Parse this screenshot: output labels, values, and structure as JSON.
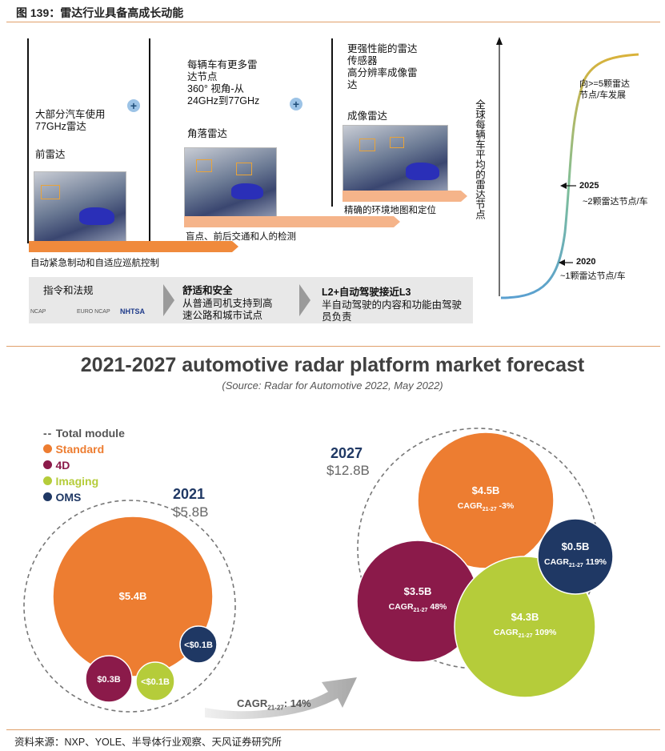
{
  "figure": {
    "title": "图 139：雷达行业具备高成长动能",
    "source": "资料来源：NXP、YOLE、半导体行业观察、天风证券研究所"
  },
  "roadmap": {
    "stage1": {
      "text": "大部分汽车使用\n77GHz雷达",
      "label": "前雷达",
      "bar": "自动紧急制动和自适应巡航控制"
    },
    "stage2": {
      "text": "每辆车有更多雷\n达节点\n360° 视角-从\n24GHz到77GHz",
      "label": "角落雷达",
      "bar": "盲点、前后交通和人的检测"
    },
    "stage3": {
      "text": "更强性能的雷达\n传感器\n高分辨率成像雷\n达",
      "label": "成像雷达",
      "bar": "精确的环境地图和定位"
    },
    "plus_symbol": "+",
    "band": {
      "col1_title": "指令和法规",
      "logos": [
        "NCAP",
        "EURO NCAP",
        "NHTSA"
      ],
      "col2_title": "舒适和安全",
      "col2_text": "从普通司机支持到高\n速公路和城市试点",
      "col3_title": "L2+自动驾驶接近L3",
      "col3_text": "半自动驾驶的内容和功能由驾驶\n员负责"
    },
    "curve": {
      "ylabel": "全球每辆车平均的雷达节点",
      "points": [
        {
          "year": "2020",
          "label": "~1颗雷达节点/车"
        },
        {
          "year": "2025",
          "label": "~2颗雷达节点/车"
        },
        {
          "year": "",
          "label": "向>=5颗雷达\n节点/车发展"
        }
      ]
    }
  },
  "forecast": {
    "title": "2021-2027 automotive radar platform market forecast",
    "subtitle": "(Source: Radar for Automotive 2022, May 2022)",
    "legend": [
      {
        "name": "Total module",
        "marker": "--",
        "color": "#555555"
      },
      {
        "name": "Standard",
        "color": "#ED7D31"
      },
      {
        "name": "4D",
        "color": "#8B1A4A"
      },
      {
        "name": "Imaging",
        "color": "#B5CC3A"
      },
      {
        "name": "OMS",
        "color": "#1F3864"
      }
    ],
    "arrow_label": "CAGR",
    "arrow_sub": "21-27",
    "arrow_value": ": 14%"
  },
  "chart_data": [
    {
      "type": "bubble",
      "year": "2021",
      "total": "$5.8B",
      "bubbles": [
        {
          "series": "Standard",
          "value": 5.4,
          "label": "$5.4B"
        },
        {
          "series": "4D",
          "value": 0.3,
          "label": "$0.3B"
        },
        {
          "series": "Imaging",
          "value": 0.1,
          "label": "<$0.1B"
        },
        {
          "series": "OMS",
          "value": 0.1,
          "label": "<$0.1B"
        }
      ]
    },
    {
      "type": "bubble",
      "year": "2027",
      "total": "$12.8B",
      "bubbles": [
        {
          "series": "Standard",
          "value": 4.5,
          "label": "$4.5B",
          "cagr": "-3%"
        },
        {
          "series": "4D",
          "value": 3.5,
          "label": "$3.5B",
          "cagr": "48%"
        },
        {
          "series": "Imaging",
          "value": 4.3,
          "label": "$4.3B",
          "cagr": "109%"
        },
        {
          "series": "OMS",
          "value": 0.5,
          "label": "$0.5B",
          "cagr": "119%"
        }
      ],
      "cagr_prefix": "CAGR",
      "cagr_sub": "21-27"
    }
  ]
}
